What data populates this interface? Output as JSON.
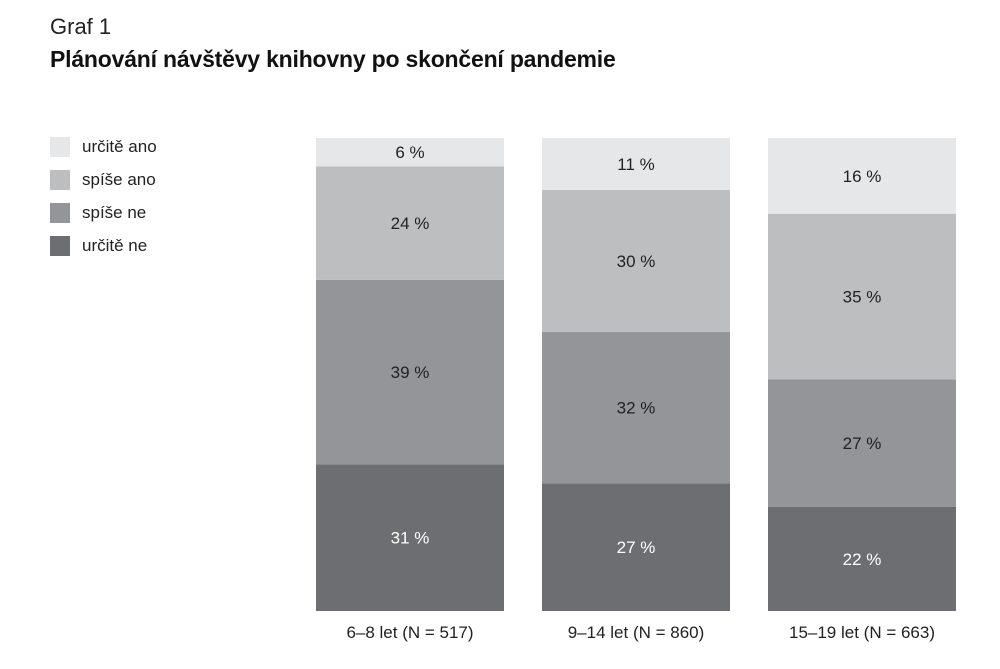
{
  "header": {
    "graf_label": "Graf 1",
    "title": "Plánování návštěvy knihovny po skončení pandemie"
  },
  "chart_data": {
    "type": "bar",
    "stacked": true,
    "title": "Plánování návštěvy knihovny po skončení pandemie",
    "xlabel": "",
    "ylabel": "",
    "ylim": [
      0,
      100
    ],
    "grid": false,
    "legend_position": "top-left",
    "categories": [
      "6–8 let (N = 517)",
      "9–14 let (N = 860)",
      "15–19 let (N = 663)"
    ],
    "series": [
      {
        "name": "určitě ne",
        "color": "#6d6e71",
        "label_color": "#ffffff",
        "values": [
          31,
          27,
          22
        ],
        "labels": [
          "31 %",
          "27 %",
          "22 %"
        ]
      },
      {
        "name": "spíše ne",
        "color": "#939598",
        "label_color": "#222222",
        "values": [
          39,
          32,
          27
        ],
        "labels": [
          "39 %",
          "32 %",
          "27 %"
        ]
      },
      {
        "name": "spíše ano",
        "color": "#bcbec0",
        "label_color": "#222222",
        "values": [
          24,
          30,
          35
        ],
        "labels": [
          "24 %",
          "30 %",
          "35 %"
        ]
      },
      {
        "name": "určitě ano",
        "color": "#e6e7e8",
        "label_color": "#222222",
        "values": [
          6,
          11,
          16
        ],
        "labels": [
          "6 %",
          "11 %",
          "16 %"
        ]
      }
    ]
  },
  "legend": {
    "items": [
      {
        "label": "určitě ano",
        "color": "#e6e7e8"
      },
      {
        "label": "spíše ano",
        "color": "#bcbec0"
      },
      {
        "label": "spíše ne",
        "color": "#939598"
      },
      {
        "label": "určitě ne",
        "color": "#6d6e71"
      }
    ]
  }
}
